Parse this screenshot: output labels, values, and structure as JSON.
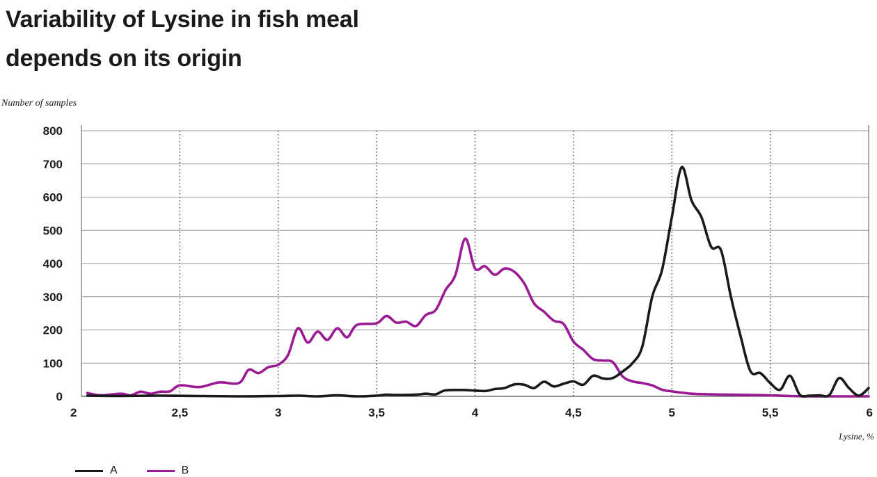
{
  "chart_data": {
    "type": "line",
    "title": "Variability of Lysine in fish meal depends on its origin",
    "title_lines": [
      "Variability of Lysine in fish meal",
      "depends on its origin"
    ],
    "ylabel": "Number of samples",
    "xlabel": "Lysine, %",
    "xlim": [
      2,
      6
    ],
    "ylim": [
      0,
      800
    ],
    "x_ticks": [
      2,
      2.5,
      3,
      3.5,
      4,
      4.5,
      5,
      5.5,
      6
    ],
    "x_tick_labels": [
      "2",
      "2,5",
      "3",
      "3,5",
      "4",
      "4,5",
      "5",
      "5,5",
      "6"
    ],
    "y_ticks": [
      0,
      100,
      200,
      300,
      400,
      500,
      600,
      700,
      800
    ],
    "y_tick_labels": [
      "0",
      "100",
      "200",
      "300",
      "400",
      "500",
      "600",
      "700",
      "800"
    ],
    "grid": "horizontal solid, vertical dotted",
    "legend": "bottom-left",
    "series": [
      {
        "name": "A",
        "color": "#1a1a1a",
        "points": [
          [
            2.03,
            2
          ],
          [
            2.2,
            1
          ],
          [
            2.4,
            2
          ],
          [
            2.6,
            1
          ],
          [
            2.8,
            0
          ],
          [
            3.0,
            1
          ],
          [
            3.1,
            2
          ],
          [
            3.2,
            0
          ],
          [
            3.3,
            3
          ],
          [
            3.4,
            0
          ],
          [
            3.5,
            2
          ],
          [
            3.55,
            5
          ],
          [
            3.6,
            4
          ],
          [
            3.7,
            5
          ],
          [
            3.75,
            8
          ],
          [
            3.8,
            6
          ],
          [
            3.85,
            18
          ],
          [
            3.95,
            19
          ],
          [
            4.05,
            16
          ],
          [
            4.1,
            22
          ],
          [
            4.15,
            25
          ],
          [
            4.2,
            36
          ],
          [
            4.25,
            35
          ],
          [
            4.3,
            25
          ],
          [
            4.35,
            44
          ],
          [
            4.4,
            30
          ],
          [
            4.45,
            38
          ],
          [
            4.5,
            45
          ],
          [
            4.55,
            35
          ],
          [
            4.6,
            62
          ],
          [
            4.65,
            54
          ],
          [
            4.7,
            55
          ],
          [
            4.75,
            75
          ],
          [
            4.8,
            100
          ],
          [
            4.85,
            150
          ],
          [
            4.9,
            300
          ],
          [
            4.95,
            380
          ],
          [
            5.0,
            540
          ],
          [
            5.05,
            690
          ],
          [
            5.1,
            590
          ],
          [
            5.15,
            540
          ],
          [
            5.2,
            450
          ],
          [
            5.25,
            440
          ],
          [
            5.3,
            300
          ],
          [
            5.35,
            180
          ],
          [
            5.4,
            75
          ],
          [
            5.45,
            70
          ],
          [
            5.5,
            40
          ],
          [
            5.55,
            20
          ],
          [
            5.6,
            62
          ],
          [
            5.65,
            5
          ],
          [
            5.7,
            2
          ],
          [
            5.75,
            3
          ],
          [
            5.8,
            4
          ],
          [
            5.85,
            55
          ],
          [
            5.9,
            25
          ],
          [
            5.95,
            2
          ],
          [
            6.0,
            25
          ]
        ]
      },
      {
        "name": "B",
        "color": "#9b1b95",
        "points": [
          [
            2.03,
            10
          ],
          [
            2.1,
            3
          ],
          [
            2.2,
            8
          ],
          [
            2.25,
            3
          ],
          [
            2.3,
            14
          ],
          [
            2.35,
            8
          ],
          [
            2.4,
            14
          ],
          [
            2.45,
            15
          ],
          [
            2.5,
            33
          ],
          [
            2.6,
            28
          ],
          [
            2.7,
            42
          ],
          [
            2.8,
            40
          ],
          [
            2.85,
            80
          ],
          [
            2.9,
            70
          ],
          [
            2.95,
            88
          ],
          [
            3.0,
            95
          ],
          [
            3.05,
            125
          ],
          [
            3.1,
            205
          ],
          [
            3.15,
            162
          ],
          [
            3.2,
            195
          ],
          [
            3.25,
            170
          ],
          [
            3.3,
            205
          ],
          [
            3.35,
            178
          ],
          [
            3.4,
            215
          ],
          [
            3.5,
            220
          ],
          [
            3.55,
            242
          ],
          [
            3.6,
            222
          ],
          [
            3.65,
            225
          ],
          [
            3.7,
            212
          ],
          [
            3.75,
            245
          ],
          [
            3.8,
            260
          ],
          [
            3.85,
            320
          ],
          [
            3.9,
            365
          ],
          [
            3.95,
            475
          ],
          [
            4.0,
            385
          ],
          [
            4.05,
            392
          ],
          [
            4.1,
            366
          ],
          [
            4.15,
            385
          ],
          [
            4.2,
            375
          ],
          [
            4.25,
            340
          ],
          [
            4.3,
            280
          ],
          [
            4.35,
            255
          ],
          [
            4.4,
            228
          ],
          [
            4.45,
            218
          ],
          [
            4.5,
            165
          ],
          [
            4.55,
            140
          ],
          [
            4.6,
            112
          ],
          [
            4.65,
            108
          ],
          [
            4.7,
            103
          ],
          [
            4.75,
            60
          ],
          [
            4.8,
            45
          ],
          [
            4.85,
            40
          ],
          [
            4.9,
            33
          ],
          [
            4.95,
            20
          ],
          [
            5.0,
            15
          ],
          [
            5.1,
            8
          ],
          [
            5.2,
            6
          ],
          [
            5.3,
            5
          ],
          [
            5.4,
            4
          ],
          [
            5.5,
            3
          ],
          [
            5.6,
            1
          ],
          [
            5.7,
            0
          ],
          [
            5.8,
            0
          ],
          [
            5.9,
            0
          ],
          [
            6.0,
            0
          ]
        ]
      }
    ]
  }
}
